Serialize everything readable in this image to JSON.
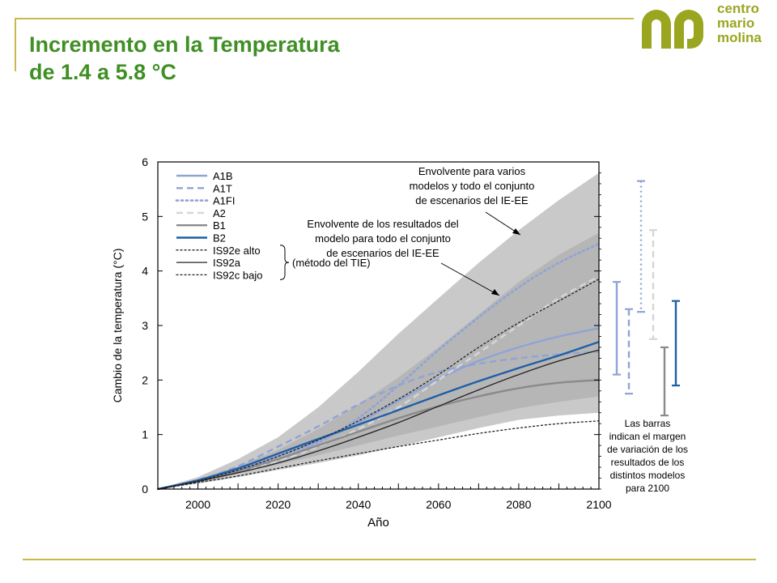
{
  "header": {
    "title_line1": "Incremento en la Temperatura",
    "title_line2": "de 1.4 a 5.8 °C"
  },
  "logo": {
    "line1": "centro",
    "line2": "mario",
    "line3": "molina"
  },
  "colors": {
    "accent_green": "#3f8f24",
    "logo_olive": "#9aa61f",
    "frame": "#c9b94a"
  },
  "chart_data": {
    "type": "line",
    "title": "",
    "xlabel": "Año",
    "ylabel": "Cambio de la temperatura (°C)",
    "xlim": [
      1990,
      2100
    ],
    "ylim": [
      0,
      6
    ],
    "xticks": [
      2000,
      2020,
      2040,
      2060,
      2080,
      2100
    ],
    "yticks": [
      0,
      1,
      2,
      3,
      4,
      5,
      6
    ],
    "legend_position": "top-left",
    "x": [
      1990,
      2000,
      2010,
      2020,
      2030,
      2040,
      2050,
      2060,
      2070,
      2080,
      2090,
      2100
    ],
    "series": [
      {
        "name": "A1B",
        "color": "#8fa3d6",
        "dash": "solid",
        "values": [
          0,
          0.16,
          0.35,
          0.6,
          0.88,
          1.22,
          1.62,
          2.02,
          2.35,
          2.6,
          2.8,
          2.95
        ]
      },
      {
        "name": "A1T",
        "color": "#8fa3d6",
        "dash": "dashed",
        "values": [
          0,
          0.17,
          0.42,
          0.78,
          1.15,
          1.55,
          1.9,
          2.15,
          2.3,
          2.4,
          2.47,
          2.52
        ]
      },
      {
        "name": "A1FI",
        "color": "#8fa3d6",
        "dash": "dotted",
        "values": [
          0,
          0.15,
          0.32,
          0.55,
          0.85,
          1.3,
          1.9,
          2.55,
          3.15,
          3.7,
          4.15,
          4.5
        ]
      },
      {
        "name": "A2",
        "color": "#d6d6d6",
        "dash": "dashed",
        "values": [
          0,
          0.15,
          0.32,
          0.52,
          0.78,
          1.1,
          1.5,
          2.0,
          2.5,
          3.0,
          3.5,
          3.9
        ]
      },
      {
        "name": "B1",
        "color": "#8a8a8a",
        "dash": "solid",
        "values": [
          0,
          0.15,
          0.33,
          0.55,
          0.8,
          1.05,
          1.3,
          1.52,
          1.7,
          1.85,
          1.95,
          2.0
        ]
      },
      {
        "name": "B2",
        "color": "#1f5fa6",
        "dash": "solid",
        "values": [
          0,
          0.16,
          0.38,
          0.65,
          0.92,
          1.18,
          1.45,
          1.72,
          1.98,
          2.22,
          2.45,
          2.7
        ]
      },
      {
        "name": "IS92e alto",
        "color": "#222222",
        "dash": "dotted",
        "values": [
          0,
          0.15,
          0.35,
          0.6,
          0.9,
          1.25,
          1.65,
          2.1,
          2.6,
          3.05,
          3.45,
          3.85
        ]
      },
      {
        "name": "IS92a",
        "color": "#222222",
        "dash": "solid",
        "values": [
          0,
          0.14,
          0.3,
          0.48,
          0.7,
          0.95,
          1.22,
          1.52,
          1.82,
          2.1,
          2.35,
          2.55
        ]
      },
      {
        "name": "IS92c bajo",
        "color": "#222222",
        "dash": "dotted",
        "values": [
          0,
          0.12,
          0.24,
          0.38,
          0.52,
          0.65,
          0.78,
          0.9,
          1.02,
          1.12,
          1.2,
          1.25
        ]
      }
    ],
    "envelopes": [
      {
        "label": "Envolvente para varios modelos y todo el conjunto de escenarios del IE-EE",
        "color": "#c9c9c9",
        "upper": [
          0,
          0.22,
          0.55,
          0.95,
          1.5,
          2.15,
          2.85,
          3.5,
          4.15,
          4.75,
          5.3,
          5.8
        ],
        "lower": [
          0,
          0.1,
          0.22,
          0.35,
          0.48,
          0.62,
          0.78,
          0.95,
          1.12,
          1.27,
          1.35,
          1.4
        ]
      },
      {
        "label": "Envolvente de los resultados del modelo para todo el conjunto de escenarios del IE-EE",
        "color": "#b6b6b6",
        "upper": [
          0,
          0.18,
          0.42,
          0.72,
          1.1,
          1.55,
          2.05,
          2.6,
          3.2,
          3.8,
          4.3,
          4.7
        ],
        "lower": [
          0,
          0.13,
          0.28,
          0.45,
          0.62,
          0.8,
          0.98,
          1.15,
          1.32,
          1.48,
          1.6,
          1.7
        ]
      }
    ],
    "brace_label": "(método del TIE)",
    "annotations": {
      "envelope_outer": [
        "Envolvente para varios",
        "modelos y todo el conjunto",
        "de escenarios del IE-EE"
      ],
      "envelope_inner": [
        "Envolvente de los resultados del",
        "modelo para todo el conjunto",
        "de escenarios del IE-EE"
      ],
      "bars_note": [
        "Las barras",
        "indican el margen",
        "de variación de los",
        "resultados de los",
        "distintos modelos",
        "para 2100"
      ]
    },
    "range_bars_2100": [
      {
        "name": "A1B",
        "low": 2.1,
        "high": 3.8,
        "color": "#8fa3d6",
        "dash": "solid"
      },
      {
        "name": "A1T",
        "low": 1.75,
        "high": 3.3,
        "color": "#8fa3d6",
        "dash": "dashed"
      },
      {
        "name": "A1FI",
        "low": 3.25,
        "high": 5.65,
        "color": "#8fa3d6",
        "dash": "dotted"
      },
      {
        "name": "A2",
        "low": 2.75,
        "high": 4.75,
        "color": "#d6d6d6",
        "dash": "dashed"
      },
      {
        "name": "B1",
        "low": 1.35,
        "high": 2.6,
        "color": "#8a8a8a",
        "dash": "solid"
      },
      {
        "name": "B2",
        "low": 1.9,
        "high": 3.45,
        "color": "#1f5fa6",
        "dash": "solid"
      }
    ]
  }
}
